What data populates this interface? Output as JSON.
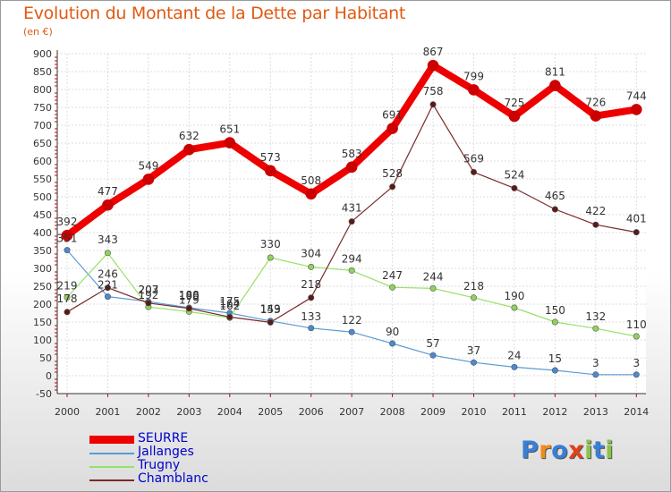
{
  "title": "Evolution du Montant de la Dette par Habitant",
  "unit": "(en €)",
  "logo": {
    "letters": [
      "P",
      "r",
      "o",
      "x",
      "i",
      "t",
      "i"
    ],
    "colors": [
      "#3a7fd5",
      "#f08c1a",
      "#3a7fd5",
      "#e0401a",
      "#8bc34a",
      "#3a7fd5",
      "#8bc34a"
    ]
  },
  "chart_data": {
    "type": "line",
    "x": [
      "2000",
      "2001",
      "2002",
      "2003",
      "2004",
      "2005",
      "2006",
      "2007",
      "2008",
      "2009",
      "2010",
      "2011",
      "2012",
      "2013",
      "2014"
    ],
    "ylim": [
      -50,
      900
    ],
    "yticks": [
      -50,
      0,
      50,
      100,
      150,
      200,
      250,
      300,
      350,
      400,
      450,
      500,
      550,
      600,
      650,
      700,
      750,
      800,
      850,
      900
    ],
    "grid": true,
    "legend": "bottom-left",
    "series": [
      {
        "name": "SEURRE",
        "color": "#ee0000",
        "values": [
          392,
          477,
          549,
          632,
          651,
          573,
          508,
          583,
          691,
          867,
          799,
          725,
          811,
          726,
          744
        ],
        "labels": [
          "392",
          "477",
          "549",
          "632",
          "651",
          "573",
          "508",
          "583",
          "691",
          "867",
          "799",
          "725",
          "811",
          "726",
          "744"
        ]
      },
      {
        "name": "Jallanges",
        "color": "#5b9bd5",
        "values": [
          351,
          221,
          207,
          190,
          175,
          153,
          133,
          122,
          90,
          57,
          37,
          24,
          15,
          3,
          3
        ],
        "labels": [
          "351",
          "221",
          "207",
          "190",
          "175",
          "153",
          "133",
          "122",
          "90",
          "57",
          "37",
          "24",
          "15",
          "3",
          "3"
        ]
      },
      {
        "name": "Trugny",
        "color": "#99e066",
        "values": [
          219,
          343,
          192,
          179,
          162,
          330,
          304,
          294,
          247,
          244,
          218,
          190,
          150,
          132,
          110
        ],
        "labels": [
          "219",
          "343",
          "192",
          "179",
          "162",
          "330",
          "304",
          "294",
          "247",
          "244",
          "218",
          "190",
          "150",
          "132",
          "110"
        ]
      },
      {
        "name": "Chamblanc",
        "color": "#7a2a2a",
        "values": [
          178,
          246,
          203,
          188,
          164,
          149,
          218,
          431,
          528,
          758,
          569,
          524,
          465,
          422,
          401
        ],
        "labels": [
          "178",
          "246",
          "203",
          "188",
          "164",
          "149",
          "218",
          "431",
          "528",
          "758",
          "569",
          "524",
          "465",
          "422",
          "401"
        ]
      }
    ]
  }
}
